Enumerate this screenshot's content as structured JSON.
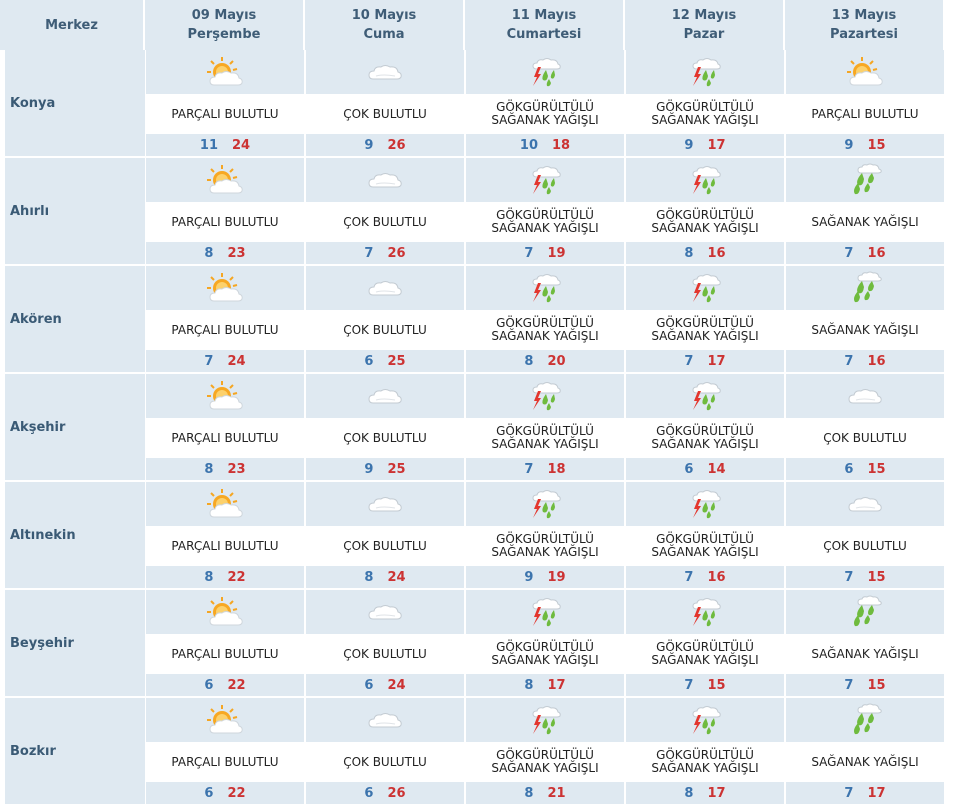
{
  "header": {
    "merkez": "Merkez",
    "days": [
      {
        "date": "09 Mayıs",
        "weekday": "Perşembe"
      },
      {
        "date": "10 Mayıs",
        "weekday": "Cuma"
      },
      {
        "date": "11 Mayıs",
        "weekday": "Cumartesi"
      },
      {
        "date": "12 Mayıs",
        "weekday": "Pazar"
      },
      {
        "date": "13 Mayıs",
        "weekday": "Pazartesi"
      }
    ]
  },
  "colors": {
    "band": "#dfe9f1",
    "min_temp": "#3c74ad",
    "max_temp": "#cc3333",
    "header_text": "#3f5d77"
  },
  "rows": [
    {
      "city": "Konya",
      "days": [
        {
          "icon": "partly-cloudy-icon",
          "desc1": "PARÇALI BULUTLU",
          "desc2": "",
          "min": "11",
          "max": "24"
        },
        {
          "icon": "cloudy-icon",
          "desc1": "ÇOK BULUTLU",
          "desc2": "",
          "min": "9",
          "max": "26"
        },
        {
          "icon": "thunderstorm-icon",
          "desc1": "GÖKGÜRÜLTÜLÜ",
          "desc2": "SAĞANAK YAĞIŞLI",
          "min": "10",
          "max": "18"
        },
        {
          "icon": "thunderstorm-icon",
          "desc1": "GÖKGÜRÜLTÜLÜ",
          "desc2": "SAĞANAK YAĞIŞLI",
          "min": "9",
          "max": "17"
        },
        {
          "icon": "partly-cloudy-icon",
          "desc1": "PARÇALI BULUTLU",
          "desc2": "",
          "min": "9",
          "max": "15"
        }
      ]
    },
    {
      "city": "Ahırlı",
      "days": [
        {
          "icon": "partly-cloudy-icon",
          "desc1": "PARÇALI BULUTLU",
          "desc2": "",
          "min": "8",
          "max": "23"
        },
        {
          "icon": "cloudy-icon",
          "desc1": "ÇOK BULUTLU",
          "desc2": "",
          "min": "7",
          "max": "26"
        },
        {
          "icon": "thunderstorm-icon",
          "desc1": "GÖKGÜRÜLTÜLÜ",
          "desc2": "SAĞANAK YAĞIŞLI",
          "min": "7",
          "max": "19"
        },
        {
          "icon": "thunderstorm-icon",
          "desc1": "GÖKGÜRÜLTÜLÜ",
          "desc2": "SAĞANAK YAĞIŞLI",
          "min": "8",
          "max": "16"
        },
        {
          "icon": "shower-icon",
          "desc1": "SAĞANAK YAĞIŞLI",
          "desc2": "",
          "min": "7",
          "max": "16"
        }
      ]
    },
    {
      "city": "Akören",
      "days": [
        {
          "icon": "partly-cloudy-icon",
          "desc1": "PARÇALI BULUTLU",
          "desc2": "",
          "min": "7",
          "max": "24"
        },
        {
          "icon": "cloudy-icon",
          "desc1": "ÇOK BULUTLU",
          "desc2": "",
          "min": "6",
          "max": "25"
        },
        {
          "icon": "thunderstorm-icon",
          "desc1": "GÖKGÜRÜLTÜLÜ",
          "desc2": "SAĞANAK YAĞIŞLI",
          "min": "8",
          "max": "20"
        },
        {
          "icon": "thunderstorm-icon",
          "desc1": "GÖKGÜRÜLTÜLÜ",
          "desc2": "SAĞANAK YAĞIŞLI",
          "min": "7",
          "max": "17"
        },
        {
          "icon": "shower-icon",
          "desc1": "SAĞANAK YAĞIŞLI",
          "desc2": "",
          "min": "7",
          "max": "16"
        }
      ]
    },
    {
      "city": "Akşehir",
      "days": [
        {
          "icon": "partly-cloudy-icon",
          "desc1": "PARÇALI BULUTLU",
          "desc2": "",
          "min": "8",
          "max": "23"
        },
        {
          "icon": "cloudy-icon",
          "desc1": "ÇOK BULUTLU",
          "desc2": "",
          "min": "9",
          "max": "25"
        },
        {
          "icon": "thunderstorm-icon",
          "desc1": "GÖKGÜRÜLTÜLÜ",
          "desc2": "SAĞANAK YAĞIŞLI",
          "min": "7",
          "max": "18"
        },
        {
          "icon": "thunderstorm-icon",
          "desc1": "GÖKGÜRÜLTÜLÜ",
          "desc2": "SAĞANAK YAĞIŞLI",
          "min": "6",
          "max": "14"
        },
        {
          "icon": "cloudy-icon",
          "desc1": "ÇOK BULUTLU",
          "desc2": "",
          "min": "6",
          "max": "15"
        }
      ]
    },
    {
      "city": "Altınekin",
      "days": [
        {
          "icon": "partly-cloudy-icon",
          "desc1": "PARÇALI BULUTLU",
          "desc2": "",
          "min": "8",
          "max": "22"
        },
        {
          "icon": "cloudy-icon",
          "desc1": "ÇOK BULUTLU",
          "desc2": "",
          "min": "8",
          "max": "24"
        },
        {
          "icon": "thunderstorm-icon",
          "desc1": "GÖKGÜRÜLTÜLÜ",
          "desc2": "SAĞANAK YAĞIŞLI",
          "min": "9",
          "max": "19"
        },
        {
          "icon": "thunderstorm-icon",
          "desc1": "GÖKGÜRÜLTÜLÜ",
          "desc2": "SAĞANAK YAĞIŞLI",
          "min": "7",
          "max": "16"
        },
        {
          "icon": "cloudy-icon",
          "desc1": "ÇOK BULUTLU",
          "desc2": "",
          "min": "7",
          "max": "15"
        }
      ]
    },
    {
      "city": "Beyşehir",
      "days": [
        {
          "icon": "partly-cloudy-icon",
          "desc1": "PARÇALI BULUTLU",
          "desc2": "",
          "min": "6",
          "max": "22"
        },
        {
          "icon": "cloudy-icon",
          "desc1": "ÇOK BULUTLU",
          "desc2": "",
          "min": "6",
          "max": "24"
        },
        {
          "icon": "thunderstorm-icon",
          "desc1": "GÖKGÜRÜLTÜLÜ",
          "desc2": "SAĞANAK YAĞIŞLI",
          "min": "8",
          "max": "17"
        },
        {
          "icon": "thunderstorm-icon",
          "desc1": "GÖKGÜRÜLTÜLÜ",
          "desc2": "SAĞANAK YAĞIŞLI",
          "min": "7",
          "max": "15"
        },
        {
          "icon": "shower-icon",
          "desc1": "SAĞANAK YAĞIŞLI",
          "desc2": "",
          "min": "7",
          "max": "15"
        }
      ]
    },
    {
      "city": "Bozkır",
      "days": [
        {
          "icon": "partly-cloudy-icon",
          "desc1": "PARÇALI BULUTLU",
          "desc2": "",
          "min": "6",
          "max": "22"
        },
        {
          "icon": "cloudy-icon",
          "desc1": "ÇOK BULUTLU",
          "desc2": "",
          "min": "6",
          "max": "26"
        },
        {
          "icon": "thunderstorm-icon",
          "desc1": "GÖKGÜRÜLTÜLÜ",
          "desc2": "SAĞANAK YAĞIŞLI",
          "min": "8",
          "max": "21"
        },
        {
          "icon": "thunderstorm-icon",
          "desc1": "GÖKGÜRÜLTÜLÜ",
          "desc2": "SAĞANAK YAĞIŞLI",
          "min": "8",
          "max": "17"
        },
        {
          "icon": "shower-icon",
          "desc1": "SAĞANAK YAĞIŞLI",
          "desc2": "",
          "min": "7",
          "max": "17"
        }
      ]
    }
  ]
}
